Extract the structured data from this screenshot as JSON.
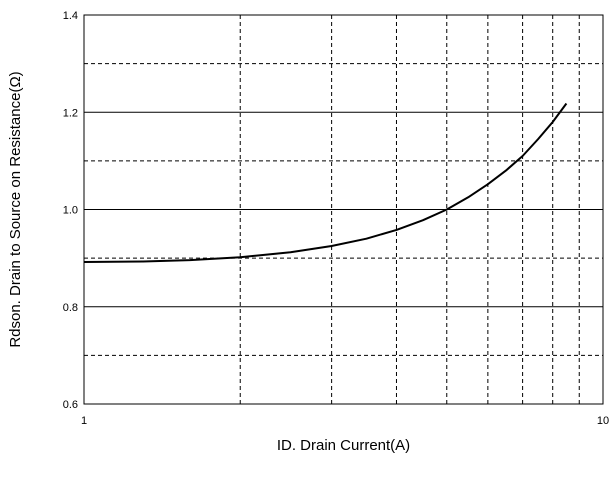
{
  "chart_data": {
    "type": "line",
    "title": "",
    "xlabel": "ID.  Drain Current(A)",
    "ylabel": "Rdson.  Drain to Source on Resistance(Ω)",
    "x_scale": "log",
    "xlim": [
      1,
      10
    ],
    "ylim": [
      0.6,
      1.4
    ],
    "x_tick_labels": [
      {
        "value": 1,
        "label": "1"
      },
      {
        "value": 10,
        "label": "10"
      }
    ],
    "y_tick_labels": [
      {
        "value": 0.6,
        "label": "0.6"
      },
      {
        "value": 0.8,
        "label": "0.8"
      },
      {
        "value": 1.0,
        "label": "1.0"
      },
      {
        "value": 1.2,
        "label": "1.2"
      },
      {
        "value": 1.4,
        "label": "1.4"
      }
    ],
    "major_y": [
      0.8,
      1.0,
      1.2
    ],
    "minor_y": [
      0.7,
      0.9,
      1.1,
      1.3
    ],
    "minor_x": [
      2,
      3,
      4,
      5,
      6,
      7,
      8,
      9
    ],
    "grid": true,
    "series": [
      {
        "color": "#000000",
        "x": [
          1.0,
          1.3,
          1.6,
          2.0,
          2.5,
          3.0,
          3.5,
          4.0,
          4.5,
          5.0,
          5.5,
          6.0,
          6.5,
          7.0,
          7.5,
          8.0,
          8.5
        ],
        "y": [
          0.892,
          0.893,
          0.896,
          0.902,
          0.912,
          0.925,
          0.94,
          0.958,
          0.978,
          1.0,
          1.025,
          1.052,
          1.08,
          1.11,
          1.145,
          1.18,
          1.218
        ]
      }
    ]
  }
}
